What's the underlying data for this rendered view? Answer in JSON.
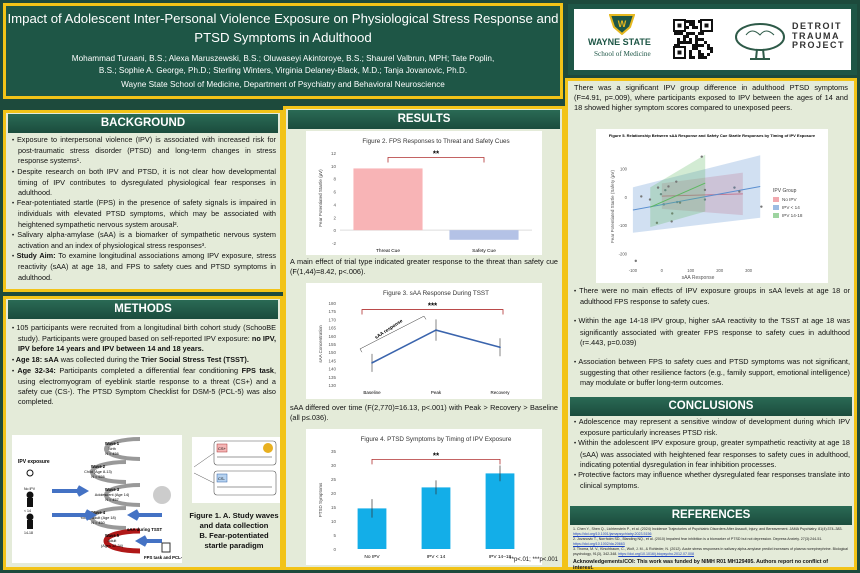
{
  "header": {
    "title_line1": "Impact of Adolescent Inter-Personal Violence Exposure on Physiological Stress Response and",
    "title_line2": "PTSD Symptoms in Adulthood",
    "authors_line1": "Mohammad Turaani, B.S.; Alexa Maruszewski, B.S.; Oluwaseyi Akintoroye, B.S.; Shaurel Valbrun, MPH; Tate Poplin,",
    "authors_line2": "B.S.; Sophie A. George, Ph.D.; Sterling Winters, Virginia Delaney-Black, M.D.; Tanja Jovanovic, Ph.D.",
    "affiliation": "Wayne State School of Medicine, Department of Psychiatry and Behavioral Neuroscience"
  },
  "logos": {
    "wsu_name": "WAYNE STATE",
    "wsu_sub": "School of Medicine",
    "dtp_line1": "DETROIT",
    "dtp_line2": "TRAUMA",
    "dtp_line3": "PROJECT"
  },
  "background": {
    "heading": "BACKGROUND",
    "items": [
      "Exposure to interpersonal violence (IPV) is associated with increased risk for post-traumatic stress disorder (PTSD) and long-term changes in stress response systems¹.",
      "Despite research on both IPV and PTSD, it is not clear how developmental timing of IPV contributes to dysregulated physiological fear responses in adulthood.",
      "Fear-potentiated startle (FPS) in the presence of safety signals is impaired in individuals with elevated PTSD symptoms, which may be associated with heightened sympathetic nervous system arousal².",
      "Salivary alpha-amylase (sAA) is a biomarker of sympathetic nervous system activation and an index of physiological stress responses³."
    ],
    "aim_label": "Study Aim:",
    "aim_text": " To examine longitudinal associations among IPV exposure, stress reactivity (sAA) at age 18, and FPS to safety cues and PTSD symptoms in adulthood."
  },
  "methods": {
    "heading": "METHODS",
    "m1a": "105 participants were recruited from a longitudinal birth cohort study (SchooBE study). Participants were grouped based on self-reported IPV exposure: ",
    "m1b": "no IPV, IPV before 14 years and IPV between 14 and 18 years.",
    "m2a": "Age 18: sAA",
    "m2b": " was collected during the ",
    "m2c": "Trier Social Stress Test (TSST).",
    "m3a": "Age 32-34:",
    "m3b": " Participants completed a differential fear conditioning ",
    "m3c": "FPS task",
    "m3d": ", using electromyogram of eyeblink startle response to a threat (CS+) and a safety cue (CS-). The PTSD Symptom Checklist for DSM-5 (PCL-5) was also completed.",
    "figure1": {
      "ipv_label": "IPV exposure",
      "waves": [
        {
          "name": "Wave 1",
          "desc": "Birth",
          "n": "N = 456"
        },
        {
          "name": "Wave 2",
          "desc": "Child (Age 8-13)",
          "n": "N = 556"
        },
        {
          "name": "Wave 3",
          "desc": "Adolescent (Age 14)",
          "n": "N = 457"
        },
        {
          "name": "Wave 4",
          "desc": "Young Adult (Age 18)",
          "n": "N = 450"
        },
        {
          "name": "Wave 5",
          "desc": "Adult",
          "n": "(Ages 32-34)"
        }
      ],
      "groups": [
        "No IPV",
        "< 14",
        "14-18"
      ],
      "saa_label": "sAA during TSST",
      "fps_label": "FPS task and PCL-5",
      "cs_plus": "CS+",
      "cs_minus": "CS-",
      "caption_line1": "Figure 1. A. Study waves",
      "caption_line2": "and data collection",
      "caption_line3": "B. Fear-potentiated",
      "caption_line4": "startle paradigm"
    }
  },
  "results": {
    "heading": "RESULTS",
    "fig2_text": "A main effect of trial type indicated greater response to the threat than safety cue (F(1,44)=8.42, p<.006).",
    "fig3_text": "sAA differed over time (F(2,770)=16.13, p<.001) with Peak > Recovery > Baseline (all p≤.036).",
    "footnote": "**p<.01; ***p<.001",
    "saa_annotation": "sAA response"
  },
  "right": {
    "intro": "There was a significant IPV group difference in adulthood PTSD symptoms (F=4.91, p=.009), where participants exposed to IPV between the ages of 14 and 18 showed higher symptom scores compared to unexposed peers.",
    "bullets": [
      "There were no main effects of IPV exposure groups in sAA levels at age 18 or adulthood FPS response to safety cues.",
      "Within the age 14-18 IPV group, higher sAA reactivity to the TSST at age 18 was significantly associated with greater FPS response to safety cues in adulthood (r=.443, p=0.039)",
      "Association between FPS to safety cues and PTSD symptoms was not significant, suggesting that other resilience factors (e.g., family support, emotional intelligence) may modulate or buffer long-term outcomes."
    ]
  },
  "conclusions": {
    "heading": "CONCLUSIONS",
    "items": [
      "Adolescence may represent a sensitive window of development during which IPV exposure particularly increases PTSD risk.",
      "Within the adolescent IPV exposure group, greater sympathetic reactivity at age 18 (sAA) was associated with heightened fear responses to safety cues in adulthood, indicating potential dysregulation in fear inhibition processes.",
      "Protective factors may influence whether dysregulated fear responses translate into clinical symptoms."
    ]
  },
  "references": {
    "heading": "REFERENCES",
    "items": [
      {
        "text": "1. Chen Y., Shen Q., Lichtenstein P., et al. (2024) Incidence Trajectories of Psychiatric Disorders After Assault, Injury, and Bereavement. JAMA Psychiatry. 81(4):374–383. ",
        "link": "https://doi.org/10.1001/jamapsychiatry.2023.5156"
      },
      {
        "text": "2. Jovanovic T., Norrholm SD., Blanding NQ., et al. (2010) Impaired fear inhibition is a biomarker of PTSD but not depression. Depress Anxiety. 27(3):244-51. ",
        "link": "https://doi.org/10.1002/da.20663"
      },
      {
        "text": "3. Thoma, M. V., Kirschbaum, C., Wolf, J. M., & Rohleder, N. (2012). Acute stress responses in salivary alpha-amylase predict increases of plasma norepinephrine. Biological psychology, 91(3), 342-348. ",
        "link": "https://doi.org/10.1016/j.biopsycho.2012.07.008"
      }
    ],
    "ack": "Acknowledgements/COI: This work was funded by NIMH R01 MH129495. Authors report no conflict of interest."
  },
  "chart_data": [
    {
      "id": "fig2",
      "type": "bar",
      "title": "Figure 2. FPS Responses to Threat and Safety Cues",
      "categories": [
        "Threat Cue",
        "Safety Cue"
      ],
      "values": [
        9.6,
        -1.5
      ],
      "colors": [
        "#f8b4b6",
        "#b4c2e6"
      ],
      "ylabel": "Fear Potentiated Startle (µV)",
      "ylim": [
        -2,
        12
      ],
      "yticks": [
        -2,
        0,
        2,
        4,
        6,
        8,
        10,
        12
      ],
      "significance": "**"
    },
    {
      "id": "fig3",
      "type": "line",
      "title": "Figure 3. sAA Response During TSST",
      "categories": [
        "Baseline",
        "Peak",
        "Recovery"
      ],
      "values": [
        143.5,
        163.5,
        153
      ],
      "errors": [
        5.5,
        6.5,
        5.5
      ],
      "color": "#3a64ad",
      "ylabel": "sAA Concentration",
      "ylim": [
        130,
        180
      ],
      "yticks": [
        130,
        135,
        140,
        145,
        150,
        155,
        160,
        165,
        170,
        175,
        180
      ],
      "significance": "***"
    },
    {
      "id": "fig4",
      "type": "bar",
      "title": "Figure 4. PTSD Symptoms by Timing of IPV Exposure",
      "categories": [
        "No IPV",
        "IPV < 14",
        "IPV 14–18"
      ],
      "values": [
        14.5,
        22,
        27
      ],
      "errors": [
        3.3,
        2.5,
        2.8
      ],
      "colors": [
        "#13aee8",
        "#13aee8",
        "#13aee8"
      ],
      "ylabel": "PTSD Symptoms",
      "ylim": [
        0,
        35
      ],
      "yticks": [
        0,
        5,
        10,
        15,
        20,
        25,
        30,
        35
      ],
      "significance": "**"
    },
    {
      "id": "fig5",
      "type": "scatter",
      "title": "Figure 5. Relationship Between sAA Response and Safety Cue Startle Responses by Timing of IPV Exposure",
      "xlabel": "sAA Response",
      "ylabel": "Fear Potentiated Startle (Safety (µV)",
      "xlim": [
        -110,
        360
      ],
      "ylim": [
        -235,
        170
      ],
      "xticks": [
        -100,
        0,
        100,
        200,
        300
      ],
      "yticks": [
        -200,
        -100,
        0,
        100
      ],
      "legend_title": "IPV Group",
      "legend_position": "right",
      "series": [
        {
          "name": "No IPV",
          "color": "#e8707a",
          "points": [
            [
              -3,
              11
            ],
            [
              12,
              25
            ],
            [
              53,
              -17
            ],
            [
              149,
              -8
            ],
            [
              7,
              -25
            ],
            [
              251,
              34
            ]
          ],
          "fit": [
            [
              0,
              4
            ],
            [
              280,
              12
            ]
          ]
        },
        {
          "name": "IPV < 14",
          "color": "#5a8fd0",
          "points": [
            [
              -71,
              3
            ],
            [
              -90,
              -224
            ],
            [
              -17,
              -90
            ],
            [
              36,
              -57
            ],
            [
              34,
              -85
            ],
            [
              268,
              20
            ],
            [
              344,
              -33
            ],
            [
              63,
              -19
            ]
          ],
          "fit": [
            [
              -100,
              -45
            ],
            [
              340,
              38
            ]
          ]
        },
        {
          "name": "IPV 14-18",
          "color": "#5cb860",
          "points": [
            [
              -41,
              -8
            ],
            [
              -13,
              34
            ],
            [
              23,
              38
            ],
            [
              50,
              55
            ],
            [
              138,
              143
            ],
            [
              149,
              26
            ]
          ],
          "fit": [
            [
              -40,
              -35
            ],
            [
              150,
              50
            ]
          ]
        }
      ]
    }
  ]
}
